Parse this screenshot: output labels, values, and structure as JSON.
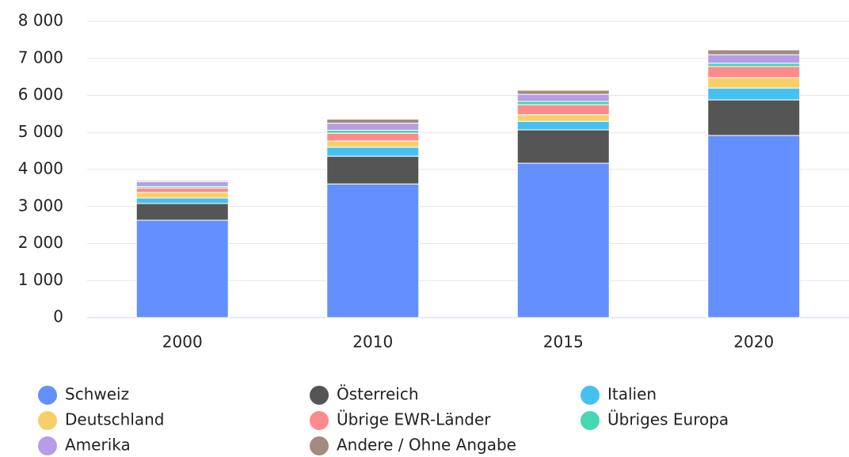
{
  "chart_data": {
    "type": "bar",
    "stacked": true,
    "categories": [
      "2000",
      "2010",
      "2015",
      "2020"
    ],
    "series": [
      {
        "name": "Schweiz",
        "color": "#6390fe",
        "values": [
          2630,
          3610,
          4170,
          4920
        ]
      },
      {
        "name": "Österreich",
        "color": "#555555",
        "values": [
          450,
          750,
          900,
          960
        ]
      },
      {
        "name": "Italien",
        "color": "#45c1f1",
        "values": [
          150,
          240,
          230,
          320
        ]
      },
      {
        "name": "Deutschland",
        "color": "#f7cf68",
        "values": [
          150,
          170,
          180,
          280
        ]
      },
      {
        "name": "Übrige EWR-Länder",
        "color": "#fd8b8b",
        "values": [
          120,
          210,
          270,
          300
        ]
      },
      {
        "name": "Übriges Europa",
        "color": "#47d8b2",
        "values": [
          40,
          80,
          90,
          90
        ]
      },
      {
        "name": "Amerika",
        "color": "#b59de8",
        "values": [
          130,
          190,
          190,
          230
        ]
      },
      {
        "name": "Andere / Ohne Angabe",
        "color": "#a38b80",
        "values": [
          30,
          110,
          110,
          130
        ]
      }
    ],
    "ylim": [
      0,
      8000
    ],
    "yticks": [
      0,
      {
        "value": 1000,
        "label": "1 000"
      },
      {
        "value": 2000,
        "label": "2 000"
      },
      {
        "value": 3000,
        "label": "3 000"
      },
      {
        "value": 4000,
        "label": "4 000"
      },
      {
        "value": 5000,
        "label": "5 000"
      },
      {
        "value": 6000,
        "label": "6 000"
      },
      {
        "value": 7000,
        "label": "7 000"
      },
      {
        "value": 8000,
        "label": "8 000"
      }
    ],
    "grid": true,
    "legend": "bottom"
  }
}
